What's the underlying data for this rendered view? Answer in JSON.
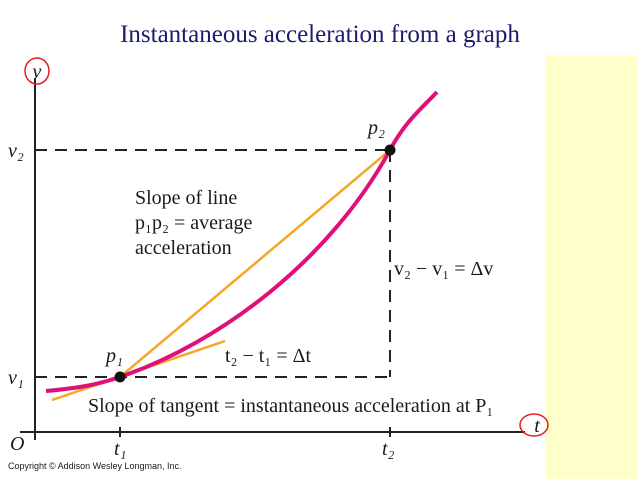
{
  "slide": {
    "title": "Instantaneous acceleration from a graph",
    "copyright": "Copyright © Addison Wesley Longman, Inc."
  },
  "diagram": {
    "axes": {
      "y_label": "v",
      "x_label": "t",
      "origin": "O"
    },
    "ticks": {
      "v2": "v₂",
      "v1": "v₁",
      "t1": "t₁",
      "t2": "t₂"
    },
    "points": {
      "p1": "p₁",
      "p2": "p₂"
    },
    "chord_note": [
      "Slope of line",
      "p₁p₂ = average",
      "acceleration"
    ],
    "delta_v": "v₂ − v₁ = Δv",
    "delta_t": "t₂ − t₁ = Δt",
    "tangent_note": "Slope of tangent = instantaneous acceleration at P₁"
  }
}
